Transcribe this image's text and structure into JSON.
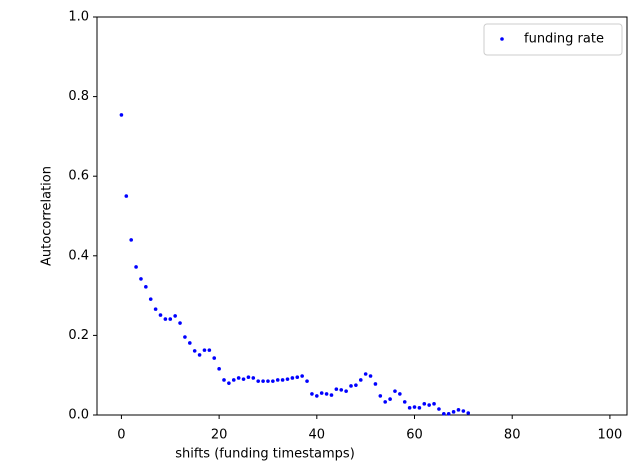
{
  "chart_data": {
    "type": "scatter",
    "xlabel": "shifts (funding timestamps)",
    "ylabel": "Autocorrelation",
    "x": [
      0,
      1,
      2,
      3,
      4,
      5,
      6,
      7,
      8,
      9,
      10,
      11,
      12,
      13,
      14,
      15,
      16,
      17,
      18,
      19,
      20,
      21,
      22,
      23,
      24,
      25,
      26,
      27,
      28,
      29,
      30,
      31,
      32,
      33,
      34,
      35,
      36,
      37,
      38,
      39,
      40,
      41,
      42,
      43,
      44,
      45,
      46,
      47,
      48,
      49,
      50,
      51,
      52,
      53,
      54,
      55,
      56,
      57,
      58,
      59,
      60,
      61,
      62,
      63,
      64,
      65,
      66,
      67,
      68,
      69,
      70,
      71
    ],
    "series": [
      {
        "name": "funding rate",
        "color": "#0000ff",
        "values": [
          0.754,
          0.55,
          0.44,
          0.372,
          0.342,
          0.322,
          0.291,
          0.266,
          0.251,
          0.241,
          0.241,
          0.249,
          0.231,
          0.196,
          0.181,
          0.161,
          0.151,
          0.163,
          0.163,
          0.143,
          0.116,
          0.088,
          0.08,
          0.088,
          0.093,
          0.09,
          0.095,
          0.093,
          0.085,
          0.085,
          0.085,
          0.085,
          0.088,
          0.088,
          0.09,
          0.093,
          0.095,
          0.098,
          0.085,
          0.053,
          0.048,
          0.055,
          0.053,
          0.05,
          0.065,
          0.063,
          0.06,
          0.073,
          0.075,
          0.088,
          0.103,
          0.098,
          0.078,
          0.048,
          0.033,
          0.04,
          0.06,
          0.053,
          0.033,
          0.018,
          0.02,
          0.018,
          0.028,
          0.025,
          0.028,
          0.015,
          0.003,
          0.003,
          0.008,
          0.013,
          0.01,
          0.005
        ]
      }
    ],
    "xlim": [
      -5,
      103.5
    ],
    "ylim": [
      0,
      1
    ],
    "xticks": [
      0,
      20,
      40,
      60,
      80,
      100
    ],
    "yticks": [
      {
        "value": 0,
        "label": "0.0"
      },
      {
        "value": 0.2,
        "label": "0.2"
      },
      {
        "value": 0.4,
        "label": "0.4"
      },
      {
        "value": 0.6,
        "label": "0.6"
      },
      {
        "value": 0.8,
        "label": "0.8"
      },
      {
        "value": 1,
        "label": "1.0"
      }
    ],
    "legend": "upper right"
  }
}
